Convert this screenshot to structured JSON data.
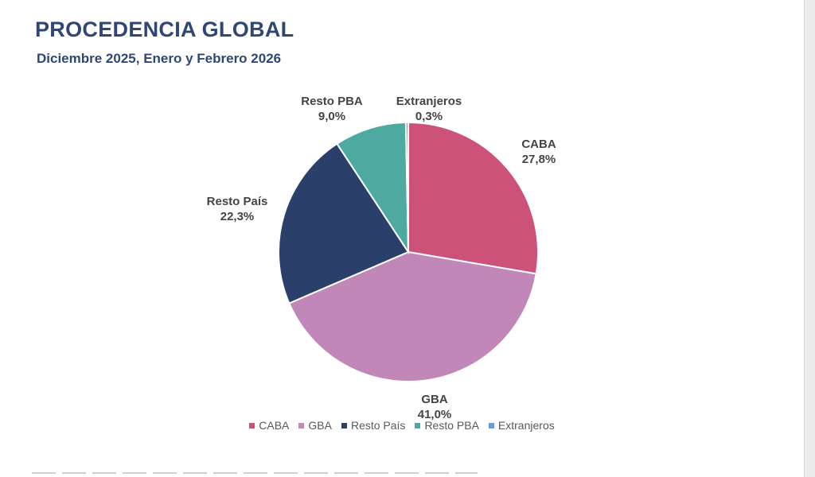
{
  "header": {
    "title": "PROCEDENCIA GLOBAL",
    "subtitle": "Diciembre 2025, Enero y Febrero 2026"
  },
  "chart_data": {
    "type": "pie",
    "title": "PROCEDENCIA GLOBAL",
    "subtitle": "Diciembre 2025, Enero y Febrero 2026",
    "legend_position": "bottom",
    "slices": [
      {
        "name": "CABA",
        "value": 27.8,
        "label": "27,8%",
        "color": "#cc527a"
      },
      {
        "name": "GBA",
        "value": 41.0,
        "label": "41,0%",
        "color": "#c087b8"
      },
      {
        "name": "Resto País",
        "value": 22.3,
        "label": "22,3%",
        "color": "#2a3f6a"
      },
      {
        "name": "Resto PBA",
        "value": 9.0,
        "label": "9,0%",
        "color": "#4eaaa0"
      },
      {
        "name": "Extranjeros",
        "value": 0.3,
        "label": "0,3%",
        "color": "#6b9bd2"
      }
    ]
  }
}
